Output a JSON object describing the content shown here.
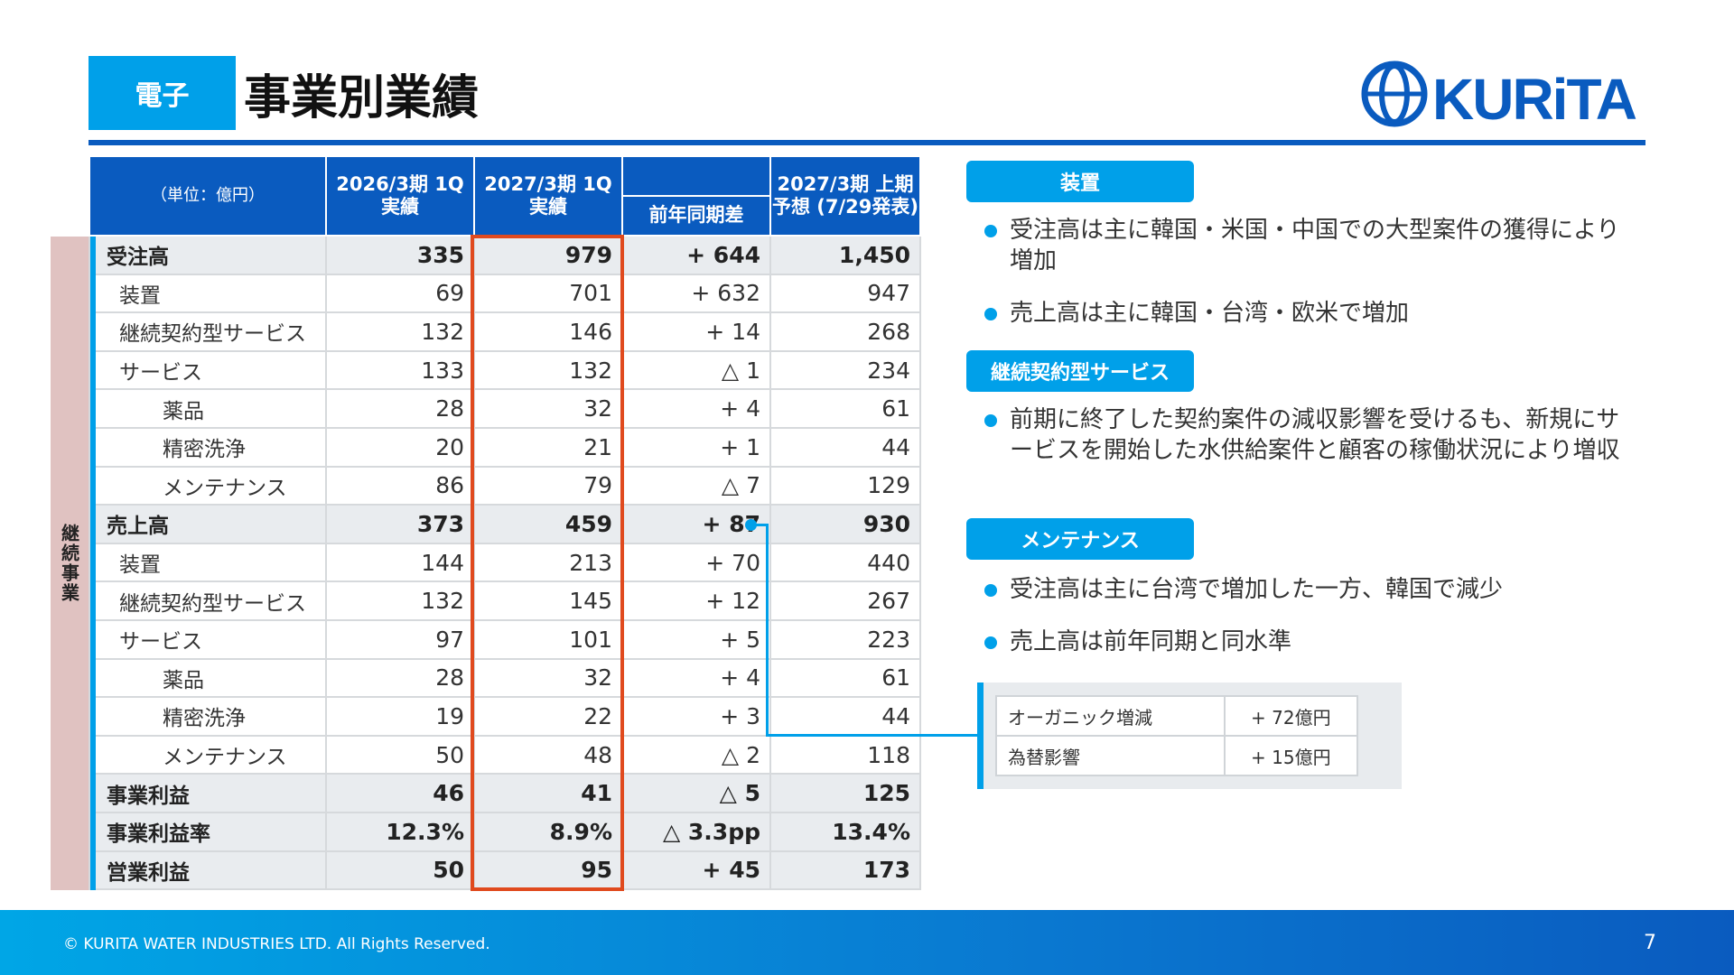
{
  "header": {
    "tag": "電子",
    "title": "事業別業績",
    "logo_text": "KURiTA"
  },
  "side_label": "継続事業",
  "table": {
    "headers": {
      "unit": "（単位：億円）",
      "col1": "2026/3期 1Q実績",
      "col2": "2027/3期 1Q実績",
      "col3": "前年同期差",
      "col4": "2027/3期 上期予想 (7/29発表)"
    },
    "rows": [
      {
        "label": "受注高",
        "level": 0,
        "bold": true,
        "v1": "335",
        "v2": "979",
        "v3": "+ 644",
        "v4": "1,450"
      },
      {
        "label": "装置",
        "level": 1,
        "bold": false,
        "v1": "69",
        "v2": "701",
        "v3": "+ 632",
        "v4": "947"
      },
      {
        "label": "継続契約型サービス",
        "level": 1,
        "bold": false,
        "v1": "132",
        "v2": "146",
        "v3": "+ 14",
        "v4": "268"
      },
      {
        "label": "サービス",
        "level": 1,
        "bold": false,
        "v1": "133",
        "v2": "132",
        "v3": "△ 1",
        "v4": "234"
      },
      {
        "label": "薬品",
        "level": 2,
        "bold": false,
        "v1": "28",
        "v2": "32",
        "v3": "+ 4",
        "v4": "61"
      },
      {
        "label": "精密洗浄",
        "level": 2,
        "bold": false,
        "v1": "20",
        "v2": "21",
        "v3": "+ 1",
        "v4": "44"
      },
      {
        "label": "メンテナンス",
        "level": 2,
        "bold": false,
        "v1": "86",
        "v2": "79",
        "v3": "△ 7",
        "v4": "129"
      },
      {
        "label": "売上高",
        "level": 0,
        "bold": true,
        "v1": "373",
        "v2": "459",
        "v3": "+ 87",
        "v4": "930"
      },
      {
        "label": "装置",
        "level": 1,
        "bold": false,
        "v1": "144",
        "v2": "213",
        "v3": "+ 70",
        "v4": "440"
      },
      {
        "label": "継続契約型サービス",
        "level": 1,
        "bold": false,
        "v1": "132",
        "v2": "145",
        "v3": "+ 12",
        "v4": "267"
      },
      {
        "label": "サービス",
        "level": 1,
        "bold": false,
        "v1": "97",
        "v2": "101",
        "v3": "+ 5",
        "v4": "223"
      },
      {
        "label": "薬品",
        "level": 2,
        "bold": false,
        "v1": "28",
        "v2": "32",
        "v3": "+ 4",
        "v4": "61"
      },
      {
        "label": "精密洗浄",
        "level": 2,
        "bold": false,
        "v1": "19",
        "v2": "22",
        "v3": "+ 3",
        "v4": "44"
      },
      {
        "label": "メンテナンス",
        "level": 2,
        "bold": false,
        "v1": "50",
        "v2": "48",
        "v3": "△ 2",
        "v4": "118"
      },
      {
        "label": "事業利益",
        "level": 0,
        "bold": true,
        "v1": "46",
        "v2": "41",
        "v3": "△ 5",
        "v4": "125"
      },
      {
        "label": "事業利益率",
        "level": 0,
        "bold": true,
        "v1": "12.3%",
        "v2": "8.9%",
        "v3": "△ 3.3pp",
        "v4": "13.4%"
      },
      {
        "label": "営業利益",
        "level": 0,
        "bold": true,
        "v1": "50",
        "v2": "95",
        "v3": "+ 45",
        "v4": "173"
      }
    ]
  },
  "panel": {
    "sections": [
      {
        "title": "装置",
        "bullets": [
          "受注高は主に韓国・米国・中国での大型案件の獲得により増加",
          "売上高は主に韓国・台湾・欧米で増加"
        ]
      },
      {
        "title": "継続契約型サービス",
        "bullets": [
          "前期に終了した契約案件の減収影響を受けるも、新規にサービスを開始した水供給案件と顧客の稼働状況により増収"
        ]
      },
      {
        "title": "メンテナンス",
        "bullets": [
          "受注高は主に台湾で増加した一方、韓国で減少",
          "売上高は前年同期と同水準"
        ]
      }
    ],
    "inset": [
      {
        "label": "オーガニック増減",
        "value": "+ 72億円"
      },
      {
        "label": "為替影響",
        "value": "+ 15億円"
      }
    ]
  },
  "footer": {
    "copyright": "© KURITA WATER INDUSTRIES LTD. All Rights Reserved.",
    "page": "7"
  },
  "colors": {
    "brand_blue": "#0a5bbf",
    "accent_cyan": "#00a0e9",
    "highlight_red": "#e04a1e",
    "side_pink": "#e0c2c1"
  }
}
